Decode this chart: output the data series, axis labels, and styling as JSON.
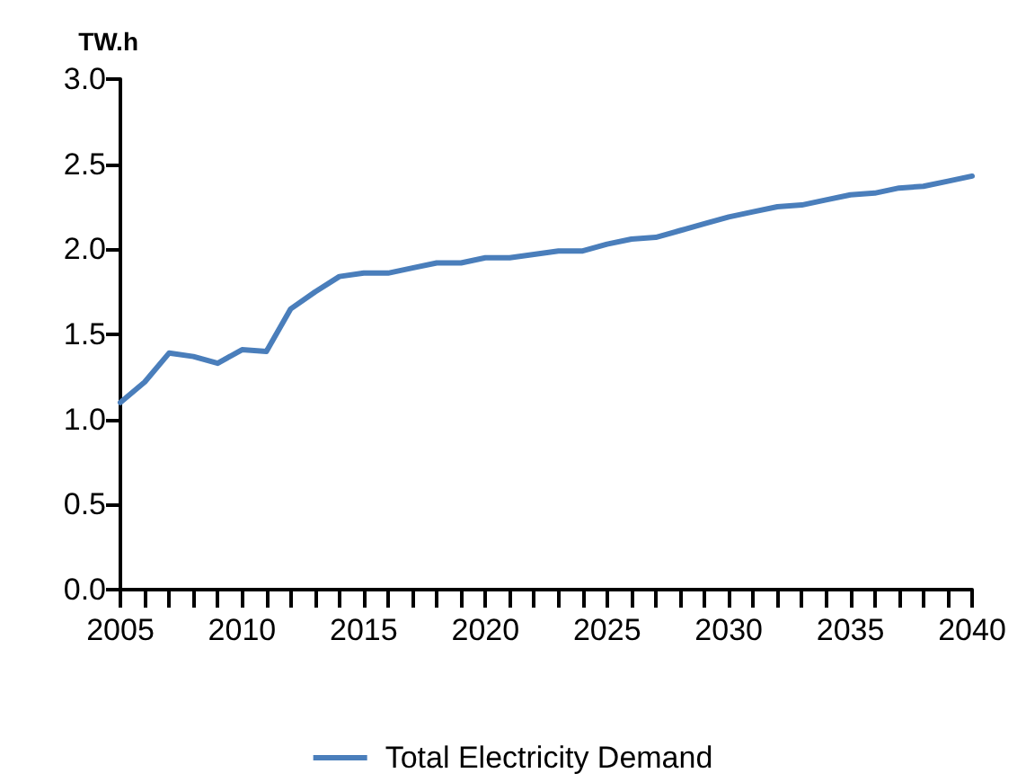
{
  "chart_data": {
    "type": "line",
    "ylabel": "TW.h",
    "x": [
      2005,
      2006,
      2007,
      2008,
      2009,
      2010,
      2011,
      2012,
      2013,
      2014,
      2015,
      2016,
      2017,
      2018,
      2019,
      2020,
      2021,
      2022,
      2023,
      2024,
      2025,
      2026,
      2027,
      2028,
      2029,
      2030,
      2031,
      2032,
      2033,
      2034,
      2035,
      2036,
      2037,
      2038,
      2039,
      2040
    ],
    "series": [
      {
        "name": "Total Electricity Demand",
        "color": "#4a7ebb",
        "values": [
          1.1,
          1.22,
          1.39,
          1.37,
          1.33,
          1.41,
          1.4,
          1.65,
          1.75,
          1.84,
          1.86,
          1.86,
          1.89,
          1.92,
          1.92,
          1.95,
          1.95,
          1.97,
          1.99,
          1.99,
          2.03,
          2.06,
          2.07,
          2.11,
          2.15,
          2.19,
          2.22,
          2.25,
          2.26,
          2.29,
          2.32,
          2.33,
          2.36,
          2.37,
          2.4,
          2.43
        ]
      }
    ],
    "xlim": [
      2005,
      2040
    ],
    "xticks": [
      2005,
      {
        "value": 2006,
        "label": null
      },
      {
        "value": 2007,
        "label": null
      },
      {
        "value": 2008,
        "label": null
      },
      {
        "value": 2009,
        "label": null
      },
      2010,
      {
        "value": 2011,
        "label": null
      },
      {
        "value": 2012,
        "label": null
      },
      {
        "value": 2013,
        "label": null
      },
      {
        "value": 2014,
        "label": null
      },
      2015,
      {
        "value": 2016,
        "label": null
      },
      {
        "value": 2017,
        "label": null
      },
      {
        "value": 2018,
        "label": null
      },
      {
        "value": 2019,
        "label": null
      },
      2020,
      {
        "value": 2021,
        "label": null
      },
      {
        "value": 2022,
        "label": null
      },
      {
        "value": 2023,
        "label": null
      },
      {
        "value": 2024,
        "label": null
      },
      2025,
      {
        "value": 2026,
        "label": null
      },
      {
        "value": 2027,
        "label": null
      },
      {
        "value": 2028,
        "label": null
      },
      {
        "value": 2029,
        "label": null
      },
      2030,
      {
        "value": 2031,
        "label": null
      },
      {
        "value": 2032,
        "label": null
      },
      {
        "value": 2033,
        "label": null
      },
      {
        "value": 2034,
        "label": null
      },
      2035,
      {
        "value": 2036,
        "label": null
      },
      {
        "value": 2037,
        "label": null
      },
      {
        "value": 2038,
        "label": null
      },
      {
        "value": 2039,
        "label": null
      },
      2040
    ],
    "ylim": [
      0,
      3.0
    ],
    "yticks": [
      {
        "value": 0,
        "label": "0.0"
      },
      {
        "value": 0.5,
        "label": "0.5"
      },
      {
        "value": 1,
        "label": "1.0"
      },
      {
        "value": 1.5,
        "label": "1.5"
      },
      {
        "value": 2,
        "label": "2.0"
      },
      {
        "value": 2.5,
        "label": "2.5"
      },
      {
        "value": 3,
        "label": "3.0"
      }
    ],
    "grid": false,
    "legend": "bottom",
    "marker": "none",
    "line_style": "solid"
  }
}
